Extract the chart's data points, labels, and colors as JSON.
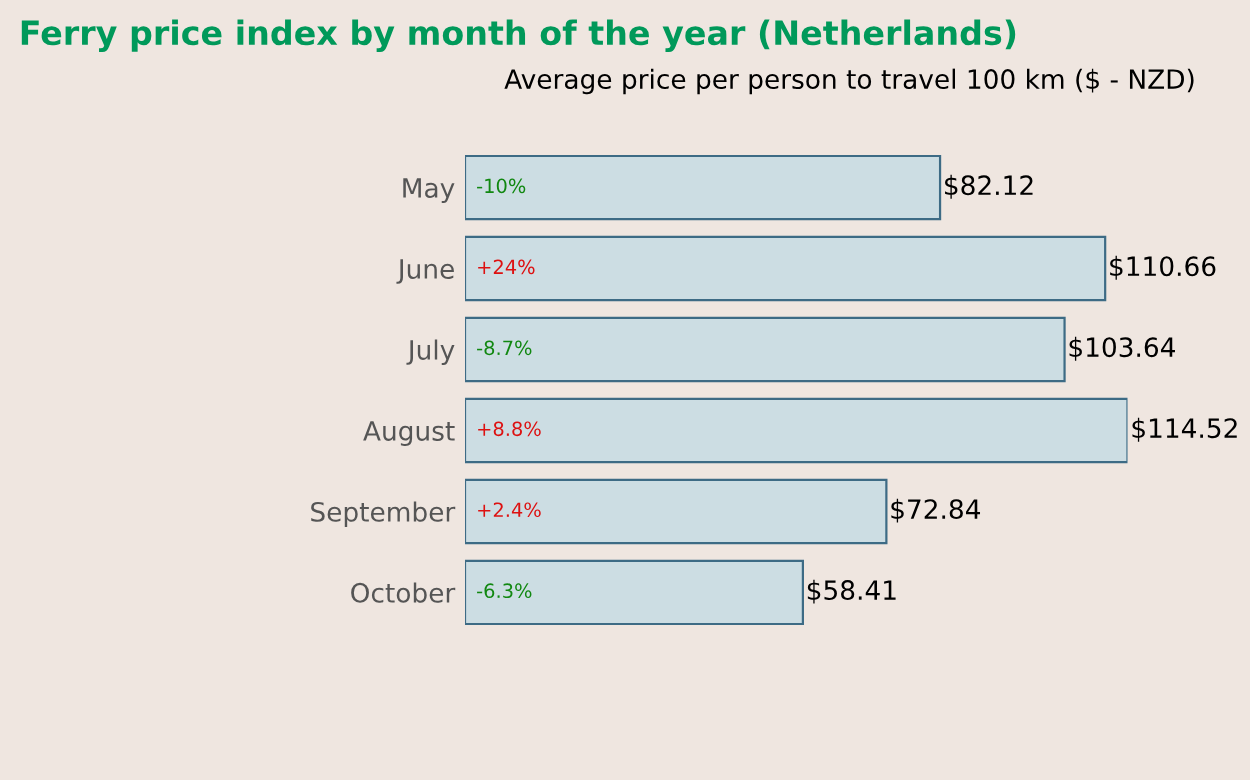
{
  "chart_data": {
    "type": "bar",
    "orientation": "horizontal",
    "title": "Ferry price index by month of the year (Netherlands)",
    "subtitle": "Average price per person to travel 100 km ($ - NZD)",
    "categories": [
      "May",
      "June",
      "July",
      "August",
      "September",
      "October"
    ],
    "values": [
      82.12,
      110.66,
      103.64,
      114.52,
      72.84,
      58.41
    ],
    "value_labels": [
      "$82.12",
      "$110.66",
      "$103.64",
      "$114.52",
      "$72.84",
      "$58.41"
    ],
    "color": "#ccdde3",
    "tick_labels": "y",
    "annotations": [
      {
        "text": "-10%",
        "y": "May"
      },
      {
        "text": "+24%",
        "y": "June"
      },
      {
        "text": "-8.7%",
        "y": "July"
      },
      {
        "text": "+8.8%",
        "y": "August"
      },
      {
        "text": "+2.4%",
        "y": "September"
      },
      {
        "text": "-6.3%",
        "y": "October"
      }
    ]
  }
}
